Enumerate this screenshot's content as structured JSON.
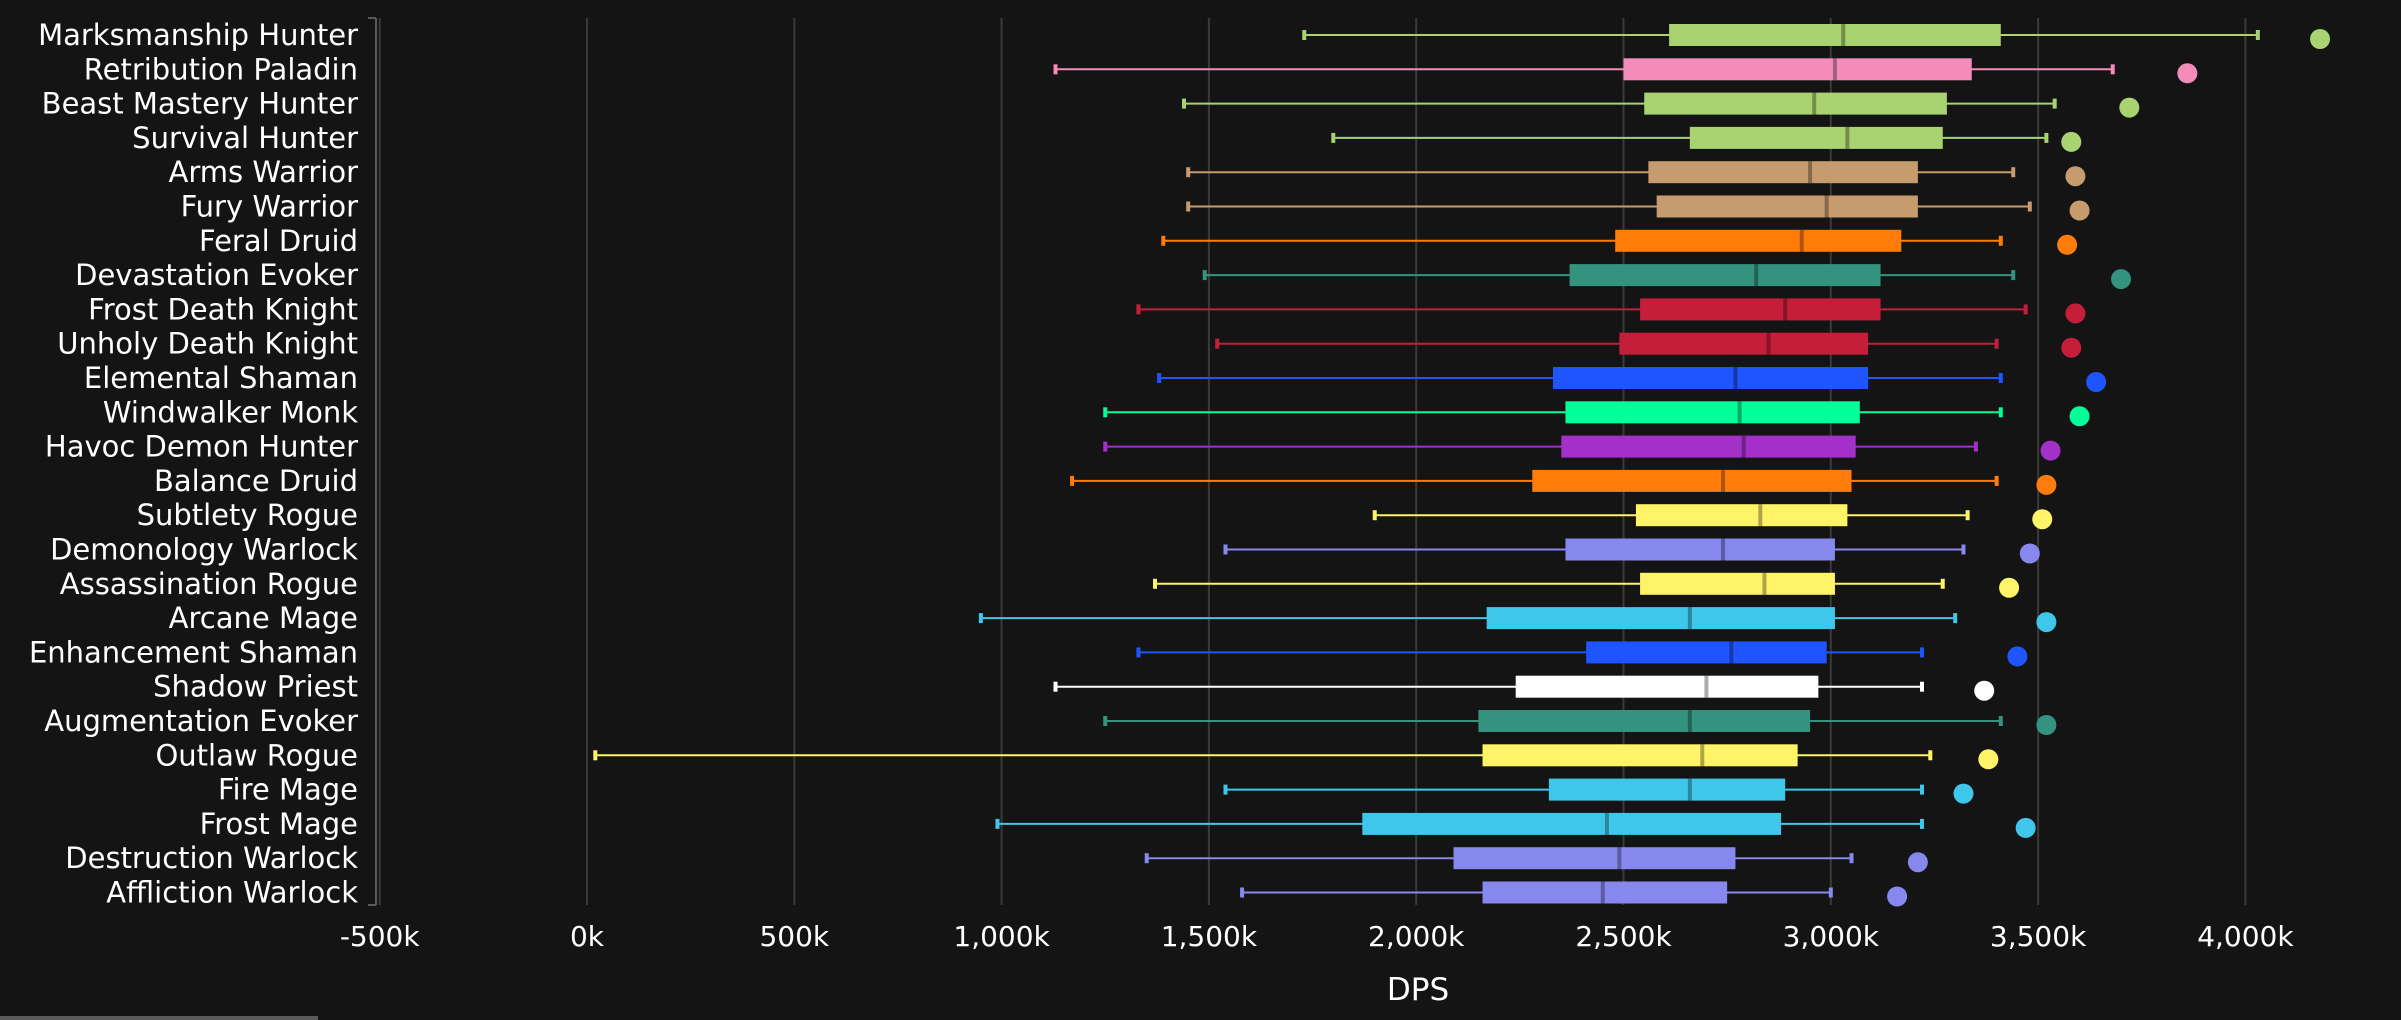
{
  "chart_data": {
    "type": "boxplot",
    "orientation": "horizontal",
    "xlabel": "DPS",
    "xlim": [
      -500000,
      4400000
    ],
    "xticks": [
      -500000,
      0,
      500000,
      1000000,
      1500000,
      2000000,
      2500000,
      3000000,
      3500000,
      4000000
    ],
    "xtick_labels": [
      "-500k",
      "0k",
      "500k",
      "1,000k",
      "1,500k",
      "2,000k",
      "2,500k",
      "3,000k",
      "3,500k",
      "4,000k"
    ],
    "grid": "vertical",
    "series": [
      {
        "name": "Marksmanship Hunter",
        "color": "#A9D271",
        "min": 1730000,
        "q1": 2610000,
        "median": 3030000,
        "q3": 3410000,
        "max": 4030000,
        "outlier": 4180000
      },
      {
        "name": "Retribution Paladin",
        "color": "#F48CBA",
        "min": 1130000,
        "q1": 2500000,
        "median": 3010000,
        "q3": 3340000,
        "max": 3680000,
        "outlier": 3860000
      },
      {
        "name": "Beast Mastery Hunter",
        "color": "#A9D271",
        "min": 1440000,
        "q1": 2550000,
        "median": 2960000,
        "q3": 3280000,
        "max": 3540000,
        "outlier": 3720000
      },
      {
        "name": "Survival Hunter",
        "color": "#A9D271",
        "min": 1800000,
        "q1": 2660000,
        "median": 3040000,
        "q3": 3270000,
        "max": 3520000,
        "outlier": 3580000
      },
      {
        "name": "Arms Warrior",
        "color": "#C69B6D",
        "min": 1450000,
        "q1": 2560000,
        "median": 2950000,
        "q3": 3210000,
        "max": 3440000,
        "outlier": 3590000
      },
      {
        "name": "Fury Warrior",
        "color": "#C69B6D",
        "min": 1450000,
        "q1": 2580000,
        "median": 2990000,
        "q3": 3210000,
        "max": 3480000,
        "outlier": 3600000
      },
      {
        "name": "Feral Druid",
        "color": "#FF7C0A",
        "min": 1390000,
        "q1": 2480000,
        "median": 2930000,
        "q3": 3170000,
        "max": 3410000,
        "outlier": 3570000
      },
      {
        "name": "Devastation Evoker",
        "color": "#33937F",
        "min": 1490000,
        "q1": 2370000,
        "median": 2820000,
        "q3": 3120000,
        "max": 3440000,
        "outlier": 3700000
      },
      {
        "name": "Frost Death Knight",
        "color": "#C41E3A",
        "min": 1330000,
        "q1": 2540000,
        "median": 2890000,
        "q3": 3120000,
        "max": 3470000,
        "outlier": 3590000
      },
      {
        "name": "Unholy Death Knight",
        "color": "#C41E3A",
        "min": 1520000,
        "q1": 2490000,
        "median": 2850000,
        "q3": 3090000,
        "max": 3400000,
        "outlier": 3580000
      },
      {
        "name": "Elemental Shaman",
        "color": "#1F55FF",
        "min": 1380000,
        "q1": 2330000,
        "median": 2770000,
        "q3": 3090000,
        "max": 3410000,
        "outlier": 3640000
      },
      {
        "name": "Windwalker Monk",
        "color": "#00FF98",
        "min": 1250000,
        "q1": 2360000,
        "median": 2780000,
        "q3": 3070000,
        "max": 3410000,
        "outlier": 3600000
      },
      {
        "name": "Havoc Demon Hunter",
        "color": "#A330C9",
        "min": 1250000,
        "q1": 2350000,
        "median": 2790000,
        "q3": 3060000,
        "max": 3350000,
        "outlier": 3530000
      },
      {
        "name": "Balance Druid",
        "color": "#FF7C0A",
        "min": 1170000,
        "q1": 2280000,
        "median": 2740000,
        "q3": 3050000,
        "max": 3400000,
        "outlier": 3520000
      },
      {
        "name": "Subtlety Rogue",
        "color": "#FFF468",
        "min": 1900000,
        "q1": 2530000,
        "median": 2830000,
        "q3": 3040000,
        "max": 3330000,
        "outlier": 3510000
      },
      {
        "name": "Demonology Warlock",
        "color": "#8788EE",
        "min": 1540000,
        "q1": 2360000,
        "median": 2740000,
        "q3": 3010000,
        "max": 3320000,
        "outlier": 3480000
      },
      {
        "name": "Assassination Rogue",
        "color": "#FFF468",
        "min": 1370000,
        "q1": 2540000,
        "median": 2840000,
        "q3": 3010000,
        "max": 3270000,
        "outlier": 3430000
      },
      {
        "name": "Arcane Mage",
        "color": "#3FC7EB",
        "min": 950000,
        "q1": 2170000,
        "median": 2660000,
        "q3": 3010000,
        "max": 3300000,
        "outlier": 3520000
      },
      {
        "name": "Enhancement Shaman",
        "color": "#1F55FF",
        "min": 1330000,
        "q1": 2410000,
        "median": 2760000,
        "q3": 2990000,
        "max": 3220000,
        "outlier": 3450000
      },
      {
        "name": "Shadow Priest",
        "color": "#FFFFFF",
        "min": 1130000,
        "q1": 2240000,
        "median": 2700000,
        "q3": 2970000,
        "max": 3220000,
        "outlier": 3370000
      },
      {
        "name": "Augmentation Evoker",
        "color": "#33937F",
        "min": 1250000,
        "q1": 2150000,
        "median": 2660000,
        "q3": 2950000,
        "max": 3410000,
        "outlier": 3520000
      },
      {
        "name": "Outlaw Rogue",
        "color": "#FFF468",
        "min": 20000,
        "q1": 2160000,
        "median": 2690000,
        "q3": 2920000,
        "max": 3240000,
        "outlier": 3380000
      },
      {
        "name": "Fire Mage",
        "color": "#3FC7EB",
        "min": 1540000,
        "q1": 2320000,
        "median": 2660000,
        "q3": 2890000,
        "max": 3220000,
        "outlier": 3320000
      },
      {
        "name": "Frost Mage",
        "color": "#3FC7EB",
        "min": 990000,
        "q1": 1870000,
        "median": 2460000,
        "q3": 2880000,
        "max": 3220000,
        "outlier": 3470000
      },
      {
        "name": "Destruction Warlock",
        "color": "#8788EE",
        "min": 1350000,
        "q1": 2090000,
        "median": 2490000,
        "q3": 2770000,
        "max": 3050000,
        "outlier": 3210000
      },
      {
        "name": "Affliction Warlock",
        "color": "#8788EE",
        "min": 1580000,
        "q1": 2160000,
        "median": 2450000,
        "q3": 2750000,
        "max": 3000000,
        "outlier": 3160000
      }
    ]
  }
}
